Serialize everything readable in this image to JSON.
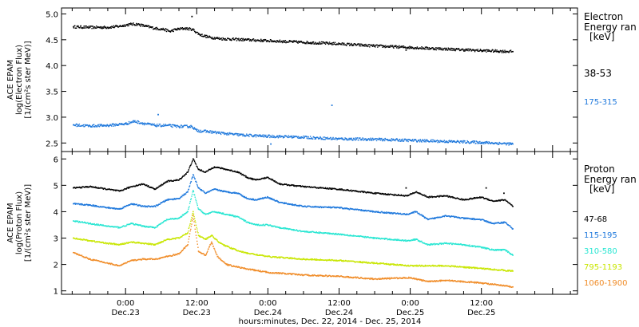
{
  "chart_data": [
    {
      "type": "scatter",
      "panel": "electron",
      "ylabel_lines": [
        "ACE EPAM",
        "log(Electron Flux)",
        "[1/(cm²s ster MeV)]"
      ],
      "ylim": [
        2.35,
        5.1
      ],
      "yticks": [
        2.5,
        3.0,
        3.5,
        4.0,
        4.5,
        5.0
      ],
      "ytick_labels": [
        "2.5",
        "3.0",
        "3.5",
        "4.0",
        "4.5",
        "5.0"
      ],
      "legend_title_lines": [
        "Electron",
        "Energy ran",
        "[keV]"
      ],
      "series": [
        {
          "name": "38-53",
          "color": "#000000",
          "points": [
            [
              -8.8,
              4.75
            ],
            [
              -6,
              4.74
            ],
            [
              -3,
              4.74
            ],
            [
              -1,
              4.76
            ],
            [
              0.8,
              4.8
            ],
            [
              2,
              4.8
            ],
            [
              3.5,
              4.76
            ],
            [
              5,
              4.72
            ],
            [
              6.5,
              4.7
            ],
            [
              7.5,
              4.66
            ],
            [
              8.5,
              4.7
            ],
            [
              10,
              4.72
            ],
            [
              11.3,
              4.7
            ],
            [
              12.5,
              4.6
            ],
            [
              14,
              4.55
            ],
            [
              16,
              4.52
            ],
            [
              20,
              4.5
            ],
            [
              24,
              4.48
            ],
            [
              30,
              4.45
            ],
            [
              36,
              4.42
            ],
            [
              42,
              4.38
            ],
            [
              48,
              4.35
            ],
            [
              54,
              4.32
            ],
            [
              60,
              4.29
            ],
            [
              65.3,
              4.27
            ]
          ],
          "outliers": [
            [
              11.2,
              4.95
            ],
            [
              47.3,
              4.3
            ]
          ]
        },
        {
          "name": "175-315",
          "color": "#1e78dc",
          "points": [
            [
              -8.8,
              2.85
            ],
            [
              -6,
              2.83
            ],
            [
              -3,
              2.84
            ],
            [
              0,
              2.87
            ],
            [
              1.5,
              2.92
            ],
            [
              3,
              2.88
            ],
            [
              5,
              2.84
            ],
            [
              7,
              2.84
            ],
            [
              9,
              2.82
            ],
            [
              11.2,
              2.82
            ],
            [
              12,
              2.74
            ],
            [
              14,
              2.72
            ],
            [
              17,
              2.68
            ],
            [
              20,
              2.65
            ],
            [
              24,
              2.63
            ],
            [
              28,
              2.62
            ],
            [
              32,
              2.6
            ],
            [
              36,
              2.58
            ],
            [
              42,
              2.57
            ],
            [
              48,
              2.55
            ],
            [
              54,
              2.53
            ],
            [
              60,
              2.51
            ],
            [
              65.3,
              2.48
            ]
          ],
          "outliers": [
            [
              5.5,
              3.05
            ],
            [
              34.8,
              3.23
            ],
            [
              24.5,
              2.48
            ]
          ]
        }
      ]
    },
    {
      "type": "scatter",
      "panel": "proton",
      "ylabel_lines": [
        "ACE EPAM",
        "log(Proton Flux)",
        "[1/(cm²s ster MeV)]"
      ],
      "ylim": [
        0.9,
        6.25
      ],
      "yticks": [
        1,
        2,
        3,
        4,
        5,
        6
      ],
      "ytick_labels": [
        "1",
        "2",
        "3",
        "4",
        "5",
        "6"
      ],
      "xlim": [
        -10.8,
        76.2
      ],
      "xticks": [
        0,
        12,
        24,
        36,
        48,
        60,
        72
      ],
      "xtick_time_labels": [
        "0:00",
        "12:00",
        "0:00",
        "12:00",
        "0:00",
        "12:00",
        ""
      ],
      "xtick_date_labels": [
        "Dec.23",
        "Dec.23",
        "Dec.24",
        "Dec.24",
        "Dec.25",
        "Dec.25",
        ""
      ],
      "xlabel": "hours:minutes, Dec. 22, 2014 - Dec. 25, 2014",
      "legend_title_lines": [
        "Proton",
        "Energy ran",
        "[keV]"
      ],
      "series": [
        {
          "name": "47-68",
          "color": "#000000",
          "points": [
            [
              -8.8,
              4.9
            ],
            [
              -6,
              4.95
            ],
            [
              -3,
              4.85
            ],
            [
              -1,
              4.78
            ],
            [
              1,
              4.95
            ],
            [
              3,
              5.05
            ],
            [
              5,
              4.85
            ],
            [
              7,
              5.15
            ],
            [
              9,
              5.2
            ],
            [
              10.5,
              5.5
            ],
            [
              11.4,
              6.0
            ],
            [
              12.3,
              5.6
            ],
            [
              13.5,
              5.5
            ],
            [
              15,
              5.7
            ],
            [
              17,
              5.6
            ],
            [
              19,
              5.5
            ],
            [
              20.5,
              5.3
            ],
            [
              22,
              5.2
            ],
            [
              24,
              5.3
            ],
            [
              26,
              5.05
            ],
            [
              30,
              4.95
            ],
            [
              36,
              4.85
            ],
            [
              42,
              4.7
            ],
            [
              47.5,
              4.6
            ],
            [
              49,
              4.75
            ],
            [
              51,
              4.55
            ],
            [
              54,
              4.6
            ],
            [
              57,
              4.45
            ],
            [
              60,
              4.55
            ],
            [
              62,
              4.4
            ],
            [
              64,
              4.45
            ],
            [
              65.3,
              4.2
            ]
          ],
          "outliers": [
            [
              47.3,
              4.9
            ],
            [
              60.8,
              4.9
            ],
            [
              63.8,
              4.7
            ]
          ]
        },
        {
          "name": "115-195",
          "color": "#1e78dc",
          "points": [
            [
              -8.8,
              4.3
            ],
            [
              -6,
              4.25
            ],
            [
              -3,
              4.15
            ],
            [
              -1,
              4.1
            ],
            [
              1,
              4.3
            ],
            [
              3,
              4.2
            ],
            [
              5,
              4.2
            ],
            [
              7,
              4.45
            ],
            [
              9,
              4.5
            ],
            [
              10.5,
              4.75
            ],
            [
              11.4,
              5.4
            ],
            [
              12.3,
              4.9
            ],
            [
              13.5,
              4.7
            ],
            [
              15,
              4.85
            ],
            [
              17,
              4.75
            ],
            [
              19,
              4.7
            ],
            [
              20.5,
              4.5
            ],
            [
              22,
              4.45
            ],
            [
              24,
              4.55
            ],
            [
              26,
              4.35
            ],
            [
              30,
              4.2
            ],
            [
              36,
              4.15
            ],
            [
              42,
              4.0
            ],
            [
              47.5,
              3.9
            ],
            [
              49,
              4.0
            ],
            [
              51,
              3.7
            ],
            [
              54,
              3.85
            ],
            [
              57,
              3.75
            ],
            [
              60,
              3.7
            ],
            [
              62,
              3.55
            ],
            [
              64,
              3.6
            ],
            [
              65.3,
              3.35
            ]
          ]
        },
        {
          "name": "310-580",
          "color": "#28e6d2",
          "points": [
            [
              -8.8,
              3.65
            ],
            [
              -6,
              3.55
            ],
            [
              -3,
              3.45
            ],
            [
              -1,
              3.4
            ],
            [
              1,
              3.55
            ],
            [
              3,
              3.45
            ],
            [
              5,
              3.4
            ],
            [
              7,
              3.7
            ],
            [
              9,
              3.75
            ],
            [
              10.5,
              4.0
            ],
            [
              11.4,
              4.8
            ],
            [
              12.3,
              4.1
            ],
            [
              13.5,
              3.9
            ],
            [
              15,
              4.0
            ],
            [
              17,
              3.9
            ],
            [
              19,
              3.8
            ],
            [
              20.5,
              3.6
            ],
            [
              22,
              3.5
            ],
            [
              24,
              3.5
            ],
            [
              26,
              3.4
            ],
            [
              30,
              3.25
            ],
            [
              36,
              3.15
            ],
            [
              42,
              3.0
            ],
            [
              47.5,
              2.9
            ],
            [
              49,
              2.95
            ],
            [
              51,
              2.75
            ],
            [
              54,
              2.8
            ],
            [
              57,
              2.75
            ],
            [
              60,
              2.65
            ],
            [
              62,
              2.55
            ],
            [
              64,
              2.55
            ],
            [
              65.3,
              2.35
            ]
          ]
        },
        {
          "name": "795-1193",
          "color": "#c8e600",
          "points": [
            [
              -8.8,
              3.0
            ],
            [
              -6,
              2.9
            ],
            [
              -3,
              2.8
            ],
            [
              -1,
              2.75
            ],
            [
              1,
              2.85
            ],
            [
              3,
              2.8
            ],
            [
              5,
              2.75
            ],
            [
              7,
              2.95
            ],
            [
              9,
              3.0
            ],
            [
              10.5,
              3.2
            ],
            [
              11.4,
              4.0
            ],
            [
              12.3,
              3.1
            ],
            [
              13.5,
              2.95
            ],
            [
              14.5,
              3.1
            ],
            [
              16,
              2.8
            ],
            [
              18,
              2.6
            ],
            [
              20,
              2.45
            ],
            [
              24,
              2.3
            ],
            [
              30,
              2.2
            ],
            [
              36,
              2.15
            ],
            [
              42,
              2.05
            ],
            [
              48,
              1.95
            ],
            [
              54,
              1.95
            ],
            [
              60,
              1.85
            ],
            [
              65.3,
              1.75
            ]
          ]
        },
        {
          "name": "1060-1900",
          "color": "#f08c28",
          "points": [
            [
              -8.8,
              2.45
            ],
            [
              -6,
              2.2
            ],
            [
              -3,
              2.05
            ],
            [
              -1,
              1.95
            ],
            [
              1,
              2.15
            ],
            [
              3,
              2.2
            ],
            [
              5,
              2.2
            ],
            [
              7,
              2.3
            ],
            [
              9,
              2.4
            ],
            [
              10.5,
              2.75
            ],
            [
              11.4,
              3.85
            ],
            [
              12.3,
              2.5
            ],
            [
              13.5,
              2.35
            ],
            [
              14.5,
              2.85
            ],
            [
              15.5,
              2.3
            ],
            [
              17,
              2.0
            ],
            [
              20,
              1.85
            ],
            [
              24,
              1.7
            ],
            [
              30,
              1.6
            ],
            [
              36,
              1.55
            ],
            [
              42,
              1.45
            ],
            [
              48,
              1.5
            ],
            [
              51,
              1.35
            ],
            [
              54,
              1.4
            ],
            [
              60,
              1.3
            ],
            [
              65.3,
              1.15
            ]
          ]
        }
      ]
    }
  ]
}
